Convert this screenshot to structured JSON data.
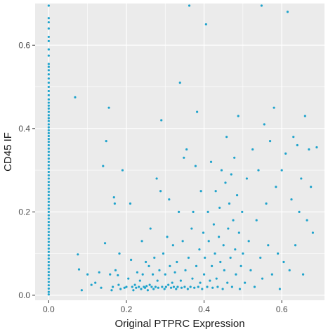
{
  "chart_data": {
    "type": "scatter",
    "title": "",
    "xlabel": "Original PTPRC Expression",
    "ylabel": "CD45 IF",
    "xlim": [
      -0.035,
      0.71
    ],
    "ylim": [
      -0.012,
      0.7
    ],
    "x_ticks": [
      0.0,
      0.2,
      0.4,
      0.6
    ],
    "y_ticks": [
      0.0,
      0.2,
      0.4,
      0.6
    ],
    "x_tick_labels": [
      "0.0",
      "0.2",
      "0.4",
      "0.6"
    ],
    "y_tick_labels": [
      "0.0",
      "0.2",
      "0.4",
      "0.6"
    ],
    "grid": true,
    "point_color": "#1fa3cc",
    "panel_background": "#ebebeb",
    "series": [
      {
        "points": [
          [
            0,
            0.695
          ],
          [
            0,
            0.665
          ],
          [
            0,
            0.655
          ],
          [
            0,
            0.64
          ],
          [
            0,
            0.62
          ],
          [
            0,
            0.61
          ],
          [
            0,
            0.59
          ],
          [
            0,
            0.575
          ],
          [
            0,
            0.555
          ],
          [
            0,
            0.548
          ],
          [
            0,
            0.54
          ],
          [
            0,
            0.53
          ],
          [
            0,
            0.52
          ],
          [
            0,
            0.51
          ],
          [
            0,
            0.5
          ],
          [
            0,
            0.49
          ],
          [
            0,
            0.48
          ],
          [
            0,
            0.47
          ],
          [
            0,
            0.462
          ],
          [
            0,
            0.455
          ],
          [
            0,
            0.448
          ],
          [
            0,
            0.44
          ],
          [
            0,
            0.432
          ],
          [
            0,
            0.425
          ],
          [
            0,
            0.418
          ],
          [
            0,
            0.41
          ],
          [
            0,
            0.403
          ],
          [
            0,
            0.396
          ],
          [
            0,
            0.389
          ],
          [
            0,
            0.382
          ],
          [
            0,
            0.375
          ],
          [
            0,
            0.368
          ],
          [
            0,
            0.36
          ],
          [
            0,
            0.352
          ],
          [
            0,
            0.344
          ],
          [
            0,
            0.336
          ],
          [
            0,
            0.328
          ],
          [
            0,
            0.32
          ],
          [
            0,
            0.312
          ],
          [
            0,
            0.304
          ],
          [
            0,
            0.296
          ],
          [
            0,
            0.288
          ],
          [
            0,
            0.28
          ],
          [
            0,
            0.272
          ],
          [
            0,
            0.264
          ],
          [
            0,
            0.256
          ],
          [
            0,
            0.248
          ],
          [
            0,
            0.24
          ],
          [
            0,
            0.232
          ],
          [
            0,
            0.224
          ],
          [
            0,
            0.216
          ],
          [
            0,
            0.208
          ],
          [
            0,
            0.2
          ],
          [
            0,
            0.192
          ],
          [
            0,
            0.184
          ],
          [
            0,
            0.176
          ],
          [
            0,
            0.168
          ],
          [
            0,
            0.16
          ],
          [
            0,
            0.152
          ],
          [
            0,
            0.144
          ],
          [
            0,
            0.136
          ],
          [
            0,
            0.128
          ],
          [
            0,
            0.12
          ],
          [
            0,
            0.112
          ],
          [
            0,
            0.104
          ],
          [
            0,
            0.096
          ],
          [
            0,
            0.088
          ],
          [
            0,
            0.08
          ],
          [
            0,
            0.072
          ],
          [
            0,
            0.064
          ],
          [
            0,
            0.056
          ],
          [
            0,
            0.048
          ],
          [
            0,
            0.04
          ],
          [
            0,
            0.032
          ],
          [
            0,
            0.024
          ],
          [
            0,
            0.016
          ],
          [
            0,
            0.008
          ],
          [
            0,
            0.002
          ],
          [
            0.068,
            0.475
          ],
          [
            0.075,
            0.098
          ],
          [
            0.078,
            0.062
          ],
          [
            0.085,
            0.012
          ],
          [
            0.1,
            0.05
          ],
          [
            0.11,
            0.025
          ],
          [
            0.12,
            0.03
          ],
          [
            0.13,
            0.055
          ],
          [
            0.135,
            0.018
          ],
          [
            0.14,
            0.31
          ],
          [
            0.145,
            0.125
          ],
          [
            0.148,
            0.37
          ],
          [
            0.155,
            0.45
          ],
          [
            0.158,
            0.05
          ],
          [
            0.162,
            0.012
          ],
          [
            0.165,
            0.02
          ],
          [
            0.168,
            0.235
          ],
          [
            0.17,
            0.22
          ],
          [
            0.172,
            0.06
          ],
          [
            0.178,
            0.048
          ],
          [
            0.18,
            0.025
          ],
          [
            0.182,
            0.1
          ],
          [
            0.185,
            0.015
          ],
          [
            0.19,
            0.3
          ],
          [
            0.195,
            0.018
          ],
          [
            0.2,
            0.02
          ],
          [
            0.205,
            0.04
          ],
          [
            0.21,
            0.22
          ],
          [
            0.212,
            0.085
          ],
          [
            0.215,
            0.02
          ],
          [
            0.218,
            0.012
          ],
          [
            0.222,
            0.025
          ],
          [
            0.225,
            0.018
          ],
          [
            0.228,
            0.055
          ],
          [
            0.232,
            0.02
          ],
          [
            0.235,
            0.035
          ],
          [
            0.238,
            0.015
          ],
          [
            0.24,
            0.13
          ],
          [
            0.242,
            0.05
          ],
          [
            0.245,
            0.02
          ],
          [
            0.248,
            0.018
          ],
          [
            0.25,
            0.08
          ],
          [
            0.252,
            0.022
          ],
          [
            0.255,
            0.012
          ],
          [
            0.258,
            0.07
          ],
          [
            0.26,
            0.025
          ],
          [
            0.262,
            0.16
          ],
          [
            0.265,
            0.02
          ],
          [
            0.268,
            0.05
          ],
          [
            0.27,
            0.015
          ],
          [
            0.272,
            0.09
          ],
          [
            0.275,
            0.02
          ],
          [
            0.278,
            0.28
          ],
          [
            0.28,
            0.035
          ],
          [
            0.282,
            0.018
          ],
          [
            0.285,
            0.06
          ],
          [
            0.288,
            0.25
          ],
          [
            0.29,
            0.42
          ],
          [
            0.292,
            0.02
          ],
          [
            0.295,
            0.1
          ],
          [
            0.298,
            0.015
          ],
          [
            0.3,
            0.05
          ],
          [
            0.302,
            0.02
          ],
          [
            0.305,
            0.14
          ],
          [
            0.308,
            0.025
          ],
          [
            0.31,
            0.23
          ],
          [
            0.312,
            0.07
          ],
          [
            0.315,
            0.018
          ],
          [
            0.318,
            0.03
          ],
          [
            0.32,
            0.12
          ],
          [
            0.322,
            0.02
          ],
          [
            0.325,
            0.055
          ],
          [
            0.328,
            0.015
          ],
          [
            0.33,
            0.08
          ],
          [
            0.332,
            0.02
          ],
          [
            0.335,
            0.2
          ],
          [
            0.338,
            0.51
          ],
          [
            0.34,
            0.035
          ],
          [
            0.342,
            0.018
          ],
          [
            0.345,
            0.13
          ],
          [
            0.348,
            0.33
          ],
          [
            0.35,
            0.02
          ],
          [
            0.352,
            0.06
          ],
          [
            0.355,
            0.35
          ],
          [
            0.358,
            0.015
          ],
          [
            0.36,
            0.09
          ],
          [
            0.362,
            0.695
          ],
          [
            0.365,
            0.02
          ],
          [
            0.368,
            0.16
          ],
          [
            0.37,
            0.04
          ],
          [
            0.372,
            0.2
          ],
          [
            0.375,
            0.018
          ],
          [
            0.378,
            0.31
          ],
          [
            0.38,
            0.07
          ],
          [
            0.382,
            0.44
          ],
          [
            0.385,
            0.02
          ],
          [
            0.388,
            0.11
          ],
          [
            0.39,
            0.03
          ],
          [
            0.392,
            0.25
          ],
          [
            0.395,
            0.015
          ],
          [
            0.398,
            0.15
          ],
          [
            0.4,
            0.05
          ],
          [
            0.402,
            0.09
          ],
          [
            0.405,
            0.65
          ],
          [
            0.408,
            0.02
          ],
          [
            0.41,
            0.2
          ],
          [
            0.412,
            0.13
          ],
          [
            0.415,
            0.035
          ],
          [
            0.418,
            0.32
          ],
          [
            0.42,
            0.07
          ],
          [
            0.422,
            0.018
          ],
          [
            0.425,
            0.17
          ],
          [
            0.428,
            0.1
          ],
          [
            0.43,
            0.25
          ],
          [
            0.432,
            0.04
          ],
          [
            0.435,
            0.02
          ],
          [
            0.438,
            0.14
          ],
          [
            0.44,
            0.21
          ],
          [
            0.442,
            0.08
          ],
          [
            0.445,
            0.3
          ],
          [
            0.448,
            0.015
          ],
          [
            0.45,
            0.12
          ],
          [
            0.452,
            0.06
          ],
          [
            0.455,
            0.27
          ],
          [
            0.458,
            0.38
          ],
          [
            0.46,
            0.03
          ],
          [
            0.462,
            0.16
          ],
          [
            0.465,
            0.22
          ],
          [
            0.468,
            0.09
          ],
          [
            0.47,
            0.29
          ],
          [
            0.472,
            0.02
          ],
          [
            0.475,
            0.18
          ],
          [
            0.478,
            0.33
          ],
          [
            0.48,
            0.11
          ],
          [
            0.482,
            0.05
          ],
          [
            0.485,
            0.24
          ],
          [
            0.488,
            0.43
          ],
          [
            0.49,
            0.15
          ],
          [
            0.492,
            0.015
          ],
          [
            0.495,
            0.07
          ],
          [
            0.498,
            0.2
          ],
          [
            0.5,
            0.1
          ],
          [
            0.505,
            0.03
          ],
          [
            0.51,
            0.28
          ],
          [
            0.515,
            0.13
          ],
          [
            0.52,
            0.06
          ],
          [
            0.525,
            0.35
          ],
          [
            0.53,
            0.02
          ],
          [
            0.535,
            0.18
          ],
          [
            0.54,
            0.3
          ],
          [
            0.545,
            0.09
          ],
          [
            0.548,
            0.695
          ],
          [
            0.55,
            0.04
          ],
          [
            0.555,
            0.41
          ],
          [
            0.56,
            0.22
          ],
          [
            0.565,
            0.12
          ],
          [
            0.57,
            0.37
          ],
          [
            0.575,
            0.05
          ],
          [
            0.58,
            0.45
          ],
          [
            0.585,
            0.26
          ],
          [
            0.59,
            0.1
          ],
          [
            0.595,
            0.015
          ],
          [
            0.6,
            0.3
          ],
          [
            0.605,
            0.08
          ],
          [
            0.61,
            0.34
          ],
          [
            0.615,
            0.68
          ],
          [
            0.62,
            0.06
          ],
          [
            0.625,
            0.23
          ],
          [
            0.63,
            0.38
          ],
          [
            0.635,
            0.12
          ],
          [
            0.64,
            0.36
          ],
          [
            0.645,
            0.2
          ],
          [
            0.65,
            0.28
          ],
          [
            0.655,
            0.05
          ],
          [
            0.66,
            0.43
          ],
          [
            0.665,
            0.18
          ],
          [
            0.67,
            0.35
          ],
          [
            0.675,
            0.26
          ],
          [
            0.68,
            0.15
          ],
          [
            0.69,
            0.355
          ]
        ]
      }
    ]
  }
}
